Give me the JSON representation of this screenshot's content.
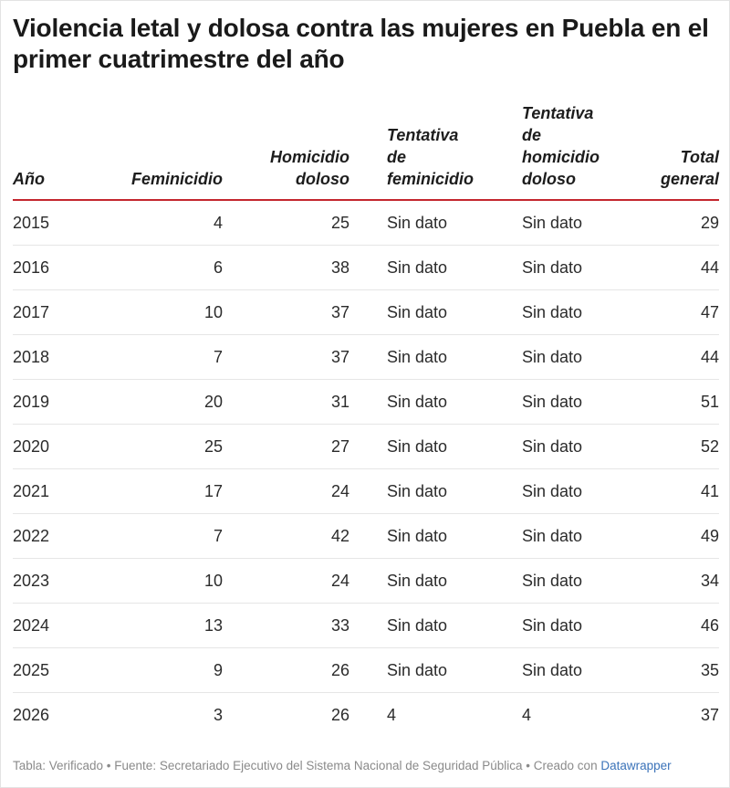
{
  "title": "Violencia letal y dolosa contra las mujeres en Puebla en el primer cuatrimestre del año",
  "columns": [
    "Año",
    "Feminicidio",
    "Homicidio doloso",
    "Tentativa de feminicidio",
    "Tentativa de homicidio doloso",
    "Total general"
  ],
  "rows": [
    [
      "2015",
      "4",
      "25",
      "Sin dato",
      "Sin dato",
      "29"
    ],
    [
      "2016",
      "6",
      "38",
      "Sin dato",
      "Sin dato",
      "44"
    ],
    [
      "2017",
      "10",
      "37",
      "Sin dato",
      "Sin dato",
      "47"
    ],
    [
      "2018",
      "7",
      "37",
      "Sin dato",
      "Sin dato",
      "44"
    ],
    [
      "2019",
      "20",
      "31",
      "Sin dato",
      "Sin dato",
      "51"
    ],
    [
      "2020",
      "25",
      "27",
      "Sin dato",
      "Sin dato",
      "52"
    ],
    [
      "2021",
      "17",
      "24",
      "Sin dato",
      "Sin dato",
      "41"
    ],
    [
      "2022",
      "7",
      "42",
      "Sin dato",
      "Sin dato",
      "49"
    ],
    [
      "2023",
      "10",
      "24",
      "Sin dato",
      "Sin dato",
      "34"
    ],
    [
      "2024",
      "13",
      "33",
      "Sin dato",
      "Sin dato",
      "46"
    ],
    [
      "2025",
      "9",
      "26",
      "Sin dato",
      "Sin dato",
      "35"
    ],
    [
      "2026",
      "3",
      "26",
      "4",
      "4",
      "37"
    ]
  ],
  "footer": {
    "source_text": "Tabla: Verificado  • Fuente: Secretariado Ejecutivo del Sistema Nacional de Seguridad Pública • Creado con ",
    "link_text": "Datawrapper"
  },
  "colors": {
    "header_rule": "#c4262e",
    "link": "#3b73b9"
  },
  "chart_data": {
    "type": "table",
    "title": "Violencia letal y dolosa contra las mujeres en Puebla en el primer cuatrimestre del año",
    "columns": [
      "Año",
      "Feminicidio",
      "Homicidio doloso",
      "Tentativa de feminicidio",
      "Tentativa de homicidio doloso",
      "Total general"
    ],
    "rows": [
      [
        "2015",
        4,
        25,
        "Sin dato",
        "Sin dato",
        29
      ],
      [
        "2016",
        6,
        38,
        "Sin dato",
        "Sin dato",
        44
      ],
      [
        "2017",
        10,
        37,
        "Sin dato",
        "Sin dato",
        47
      ],
      [
        "2018",
        7,
        37,
        "Sin dato",
        "Sin dato",
        44
      ],
      [
        "2019",
        20,
        31,
        "Sin dato",
        "Sin dato",
        51
      ],
      [
        "2020",
        25,
        27,
        "Sin dato",
        "Sin dato",
        52
      ],
      [
        "2021",
        17,
        24,
        "Sin dato",
        "Sin dato",
        41
      ],
      [
        "2022",
        7,
        42,
        "Sin dato",
        "Sin dato",
        49
      ],
      [
        "2023",
        10,
        24,
        "Sin dato",
        "Sin dato",
        34
      ],
      [
        "2024",
        13,
        33,
        "Sin dato",
        "Sin dato",
        46
      ],
      [
        "2025",
        9,
        26,
        "Sin dato",
        "Sin dato",
        35
      ],
      [
        "2026",
        3,
        26,
        4,
        4,
        37
      ]
    ]
  }
}
